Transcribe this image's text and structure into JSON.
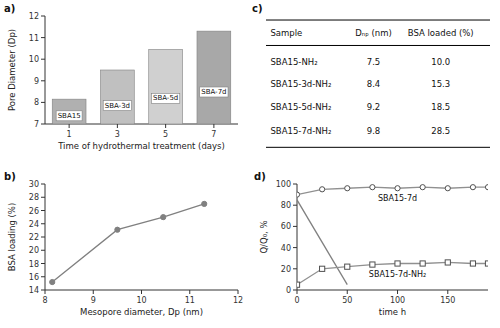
{
  "chart_data": [
    {
      "type": "bar",
      "title": "a)",
      "x": [
        1,
        3,
        5,
        7
      ],
      "values": [
        8.15,
        9.5,
        10.45,
        11.3
      ],
      "annotations": [
        "SBA15",
        "SBA-3d",
        "SBA-5d",
        "SBA-7d"
      ],
      "colors": [
        "#b0b0b0",
        "#c0c0c0",
        "#d0d0d0",
        "#a8a8a8"
      ],
      "xlim": [
        0,
        8
      ],
      "xticks": [
        1,
        3,
        5,
        7
      ],
      "ylim": [
        7,
        12
      ],
      "yticks": [
        7,
        8,
        9,
        10,
        11,
        12
      ],
      "xlabel": "Time of hydrothermal treatment (days)",
      "ylabel": "Pore Diameter (Dp)"
    },
    {
      "type": "line",
      "title": "b)",
      "x": [
        8.15,
        9.5,
        10.45,
        11.3
      ],
      "values": [
        15.2,
        23.1,
        25.0,
        27.0
      ],
      "color": "#808080",
      "marker": "circle",
      "xlim": [
        8,
        12
      ],
      "xticks": [
        8,
        9,
        10,
        11,
        12
      ],
      "ylim": [
        14,
        30
      ],
      "yticks": [
        14,
        16,
        18,
        20,
        22,
        24,
        26,
        28,
        30
      ],
      "xlabel": "Mesopore diameter, Dp (nm)",
      "ylabel": "BSA loading (%)"
    },
    {
      "type": "table",
      "title": "c)",
      "columns": [
        "Sample",
        "Dₙₚ (nm)",
        "BSA loaded (%)"
      ],
      "rows": [
        [
          "SBA15-NH₂",
          "7.5",
          "10.0"
        ],
        [
          "SBA15-3d-NH₂",
          "8.4",
          "15.3"
        ],
        [
          "SBA15-5d-NH₂",
          "9.2",
          "18.5"
        ],
        [
          "SBA15-7d-NH₂",
          "9.8",
          "28.5"
        ]
      ]
    },
    {
      "type": "line",
      "title": "d)",
      "series": [
        {
          "x": [
            0,
            50
          ],
          "values": [
            85,
            5
          ],
          "color": "#808080",
          "line_style": "solid"
        },
        {
          "name": "SBA15-7d",
          "x": [
            0,
            25,
            50,
            75,
            100,
            125,
            150,
            175,
            190
          ],
          "values": [
            90,
            95,
            96,
            97,
            96,
            97,
            96,
            97,
            97
          ],
          "color": "#909090",
          "marker": "circle"
        },
        {
          "name": "SBA15-7d-NH₂",
          "x": [
            0,
            25,
            50,
            75,
            100,
            125,
            150,
            175,
            190
          ],
          "values": [
            5,
            20,
            22,
            24,
            25,
            25,
            26,
            25,
            25
          ],
          "color": "#909090",
          "marker": "square"
        }
      ],
      "xlim": [
        0,
        190
      ],
      "xticks": [
        0,
        50,
        100,
        150
      ],
      "ylim": [
        0,
        100
      ],
      "yticks": [
        0,
        20,
        40,
        60,
        80,
        100
      ],
      "xlabel": "time h",
      "ylabel": "Q/Q₀, %"
    }
  ]
}
